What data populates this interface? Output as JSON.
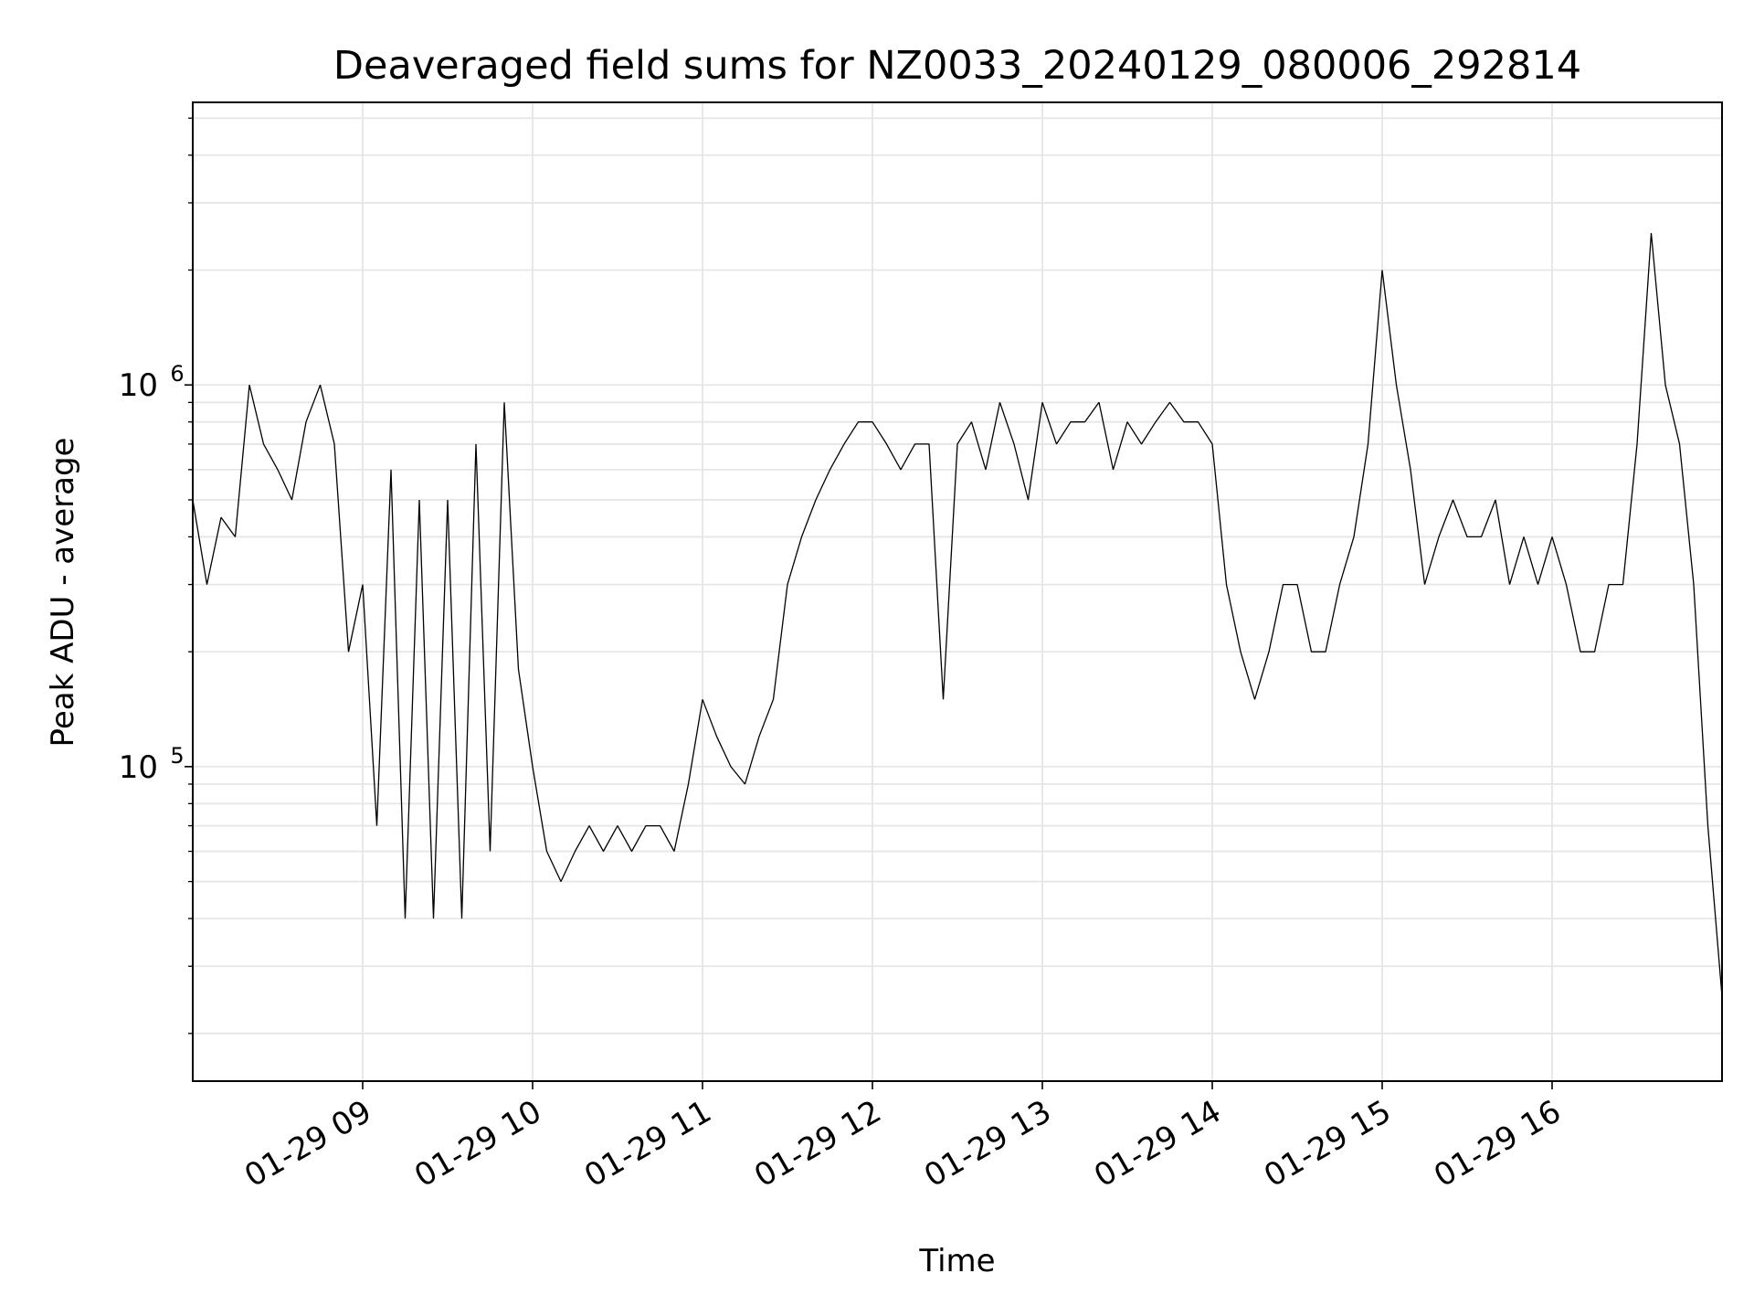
{
  "chart_data": {
    "type": "line",
    "title": "Deaveraged field sums for NZ0033_20240129_080006_292814",
    "xlabel": "Time",
    "ylabel": "Peak ADU - average",
    "y_scale": "log",
    "ylim": [
      15000,
      5500000
    ],
    "xlim": [
      "2024-01-29 08:00",
      "2024-01-29 17:00"
    ],
    "x_ticks": [
      {
        "time": "2024-01-29 09:00",
        "label": "01-29 09"
      },
      {
        "time": "2024-01-29 10:00",
        "label": "01-29 10"
      },
      {
        "time": "2024-01-29 11:00",
        "label": "01-29 11"
      },
      {
        "time": "2024-01-29 12:00",
        "label": "01-29 12"
      },
      {
        "time": "2024-01-29 13:00",
        "label": "01-29 13"
      },
      {
        "time": "2024-01-29 14:00",
        "label": "01-29 14"
      },
      {
        "time": "2024-01-29 15:00",
        "label": "01-29 15"
      },
      {
        "time": "2024-01-29 16:00",
        "label": "01-29 16"
      }
    ],
    "y_ticks": [
      {
        "value": 100000,
        "base": "10",
        "exp": "5"
      },
      {
        "value": 1000000,
        "base": "10",
        "exp": "6"
      }
    ],
    "grid": true,
    "line_color": "#000000",
    "grid_color": "#e6e6e6",
    "series": [
      {
        "x": [
          "2024-01-29 08:00",
          "2024-01-29 08:05",
          "2024-01-29 08:10",
          "2024-01-29 08:15",
          "2024-01-29 08:20",
          "2024-01-29 08:25",
          "2024-01-29 08:30",
          "2024-01-29 08:35",
          "2024-01-29 08:40",
          "2024-01-29 08:45",
          "2024-01-29 08:50",
          "2024-01-29 08:55",
          "2024-01-29 09:00",
          "2024-01-29 09:05",
          "2024-01-29 09:10",
          "2024-01-29 09:15",
          "2024-01-29 09:20",
          "2024-01-29 09:25",
          "2024-01-29 09:30",
          "2024-01-29 09:35",
          "2024-01-29 09:40",
          "2024-01-29 09:45",
          "2024-01-29 09:50",
          "2024-01-29 09:55",
          "2024-01-29 10:00",
          "2024-01-29 10:05",
          "2024-01-29 10:10",
          "2024-01-29 10:15",
          "2024-01-29 10:20",
          "2024-01-29 10:25",
          "2024-01-29 10:30",
          "2024-01-29 10:35",
          "2024-01-29 10:40",
          "2024-01-29 10:45",
          "2024-01-29 10:50",
          "2024-01-29 10:55",
          "2024-01-29 11:00",
          "2024-01-29 11:05",
          "2024-01-29 11:10",
          "2024-01-29 11:15",
          "2024-01-29 11:20",
          "2024-01-29 11:25",
          "2024-01-29 11:30",
          "2024-01-29 11:35",
          "2024-01-29 11:40",
          "2024-01-29 11:45",
          "2024-01-29 11:50",
          "2024-01-29 11:55",
          "2024-01-29 12:00",
          "2024-01-29 12:05",
          "2024-01-29 12:10",
          "2024-01-29 12:15",
          "2024-01-29 12:20",
          "2024-01-29 12:25",
          "2024-01-29 12:30",
          "2024-01-29 12:35",
          "2024-01-29 12:40",
          "2024-01-29 12:45",
          "2024-01-29 12:50",
          "2024-01-29 12:55",
          "2024-01-29 13:00",
          "2024-01-29 13:05",
          "2024-01-29 13:10",
          "2024-01-29 13:15",
          "2024-01-29 13:20",
          "2024-01-29 13:25",
          "2024-01-29 13:30",
          "2024-01-29 13:35",
          "2024-01-29 13:40",
          "2024-01-29 13:45",
          "2024-01-29 13:50",
          "2024-01-29 13:55",
          "2024-01-29 14:00",
          "2024-01-29 14:05",
          "2024-01-29 14:10",
          "2024-01-29 14:15",
          "2024-01-29 14:20",
          "2024-01-29 14:25",
          "2024-01-29 14:30",
          "2024-01-29 14:35",
          "2024-01-29 14:40",
          "2024-01-29 14:45",
          "2024-01-29 14:50",
          "2024-01-29 14:55",
          "2024-01-29 15:00",
          "2024-01-29 15:05",
          "2024-01-29 15:10",
          "2024-01-29 15:15",
          "2024-01-29 15:20",
          "2024-01-29 15:25",
          "2024-01-29 15:30",
          "2024-01-29 15:35",
          "2024-01-29 15:40",
          "2024-01-29 15:45",
          "2024-01-29 15:50",
          "2024-01-29 15:55",
          "2024-01-29 16:00",
          "2024-01-29 16:05",
          "2024-01-29 16:10",
          "2024-01-29 16:15",
          "2024-01-29 16:20",
          "2024-01-29 16:25",
          "2024-01-29 16:30",
          "2024-01-29 16:35",
          "2024-01-29 16:40",
          "2024-01-29 16:45",
          "2024-01-29 16:50",
          "2024-01-29 16:55",
          "2024-01-29 17:00"
        ],
        "y": [
          500000,
          300000,
          450000,
          400000,
          1000000,
          700000,
          600000,
          500000,
          800000,
          1000000,
          700000,
          200000,
          300000,
          70000,
          600000,
          40000,
          500000,
          40000,
          500000,
          40000,
          700000,
          60000,
          900000,
          180000,
          100000,
          60000,
          50000,
          60000,
          70000,
          60000,
          70000,
          60000,
          70000,
          70000,
          60000,
          90000,
          150000,
          120000,
          100000,
          90000,
          120000,
          150000,
          300000,
          400000,
          500000,
          600000,
          700000,
          800000,
          800000,
          700000,
          600000,
          700000,
          700000,
          150000,
          700000,
          800000,
          600000,
          900000,
          700000,
          500000,
          900000,
          700000,
          800000,
          800000,
          900000,
          600000,
          800000,
          700000,
          800000,
          900000,
          800000,
          800000,
          700000,
          300000,
          200000,
          150000,
          200000,
          300000,
          300000,
          200000,
          200000,
          300000,
          400000,
          700000,
          2000000,
          1000000,
          600000,
          300000,
          400000,
          500000,
          400000,
          400000,
          500000,
          300000,
          400000,
          300000,
          400000,
          300000,
          200000,
          200000,
          300000,
          300000,
          700000,
          2500000,
          1000000,
          700000,
          300000,
          70000,
          25000
        ]
      }
    ]
  }
}
